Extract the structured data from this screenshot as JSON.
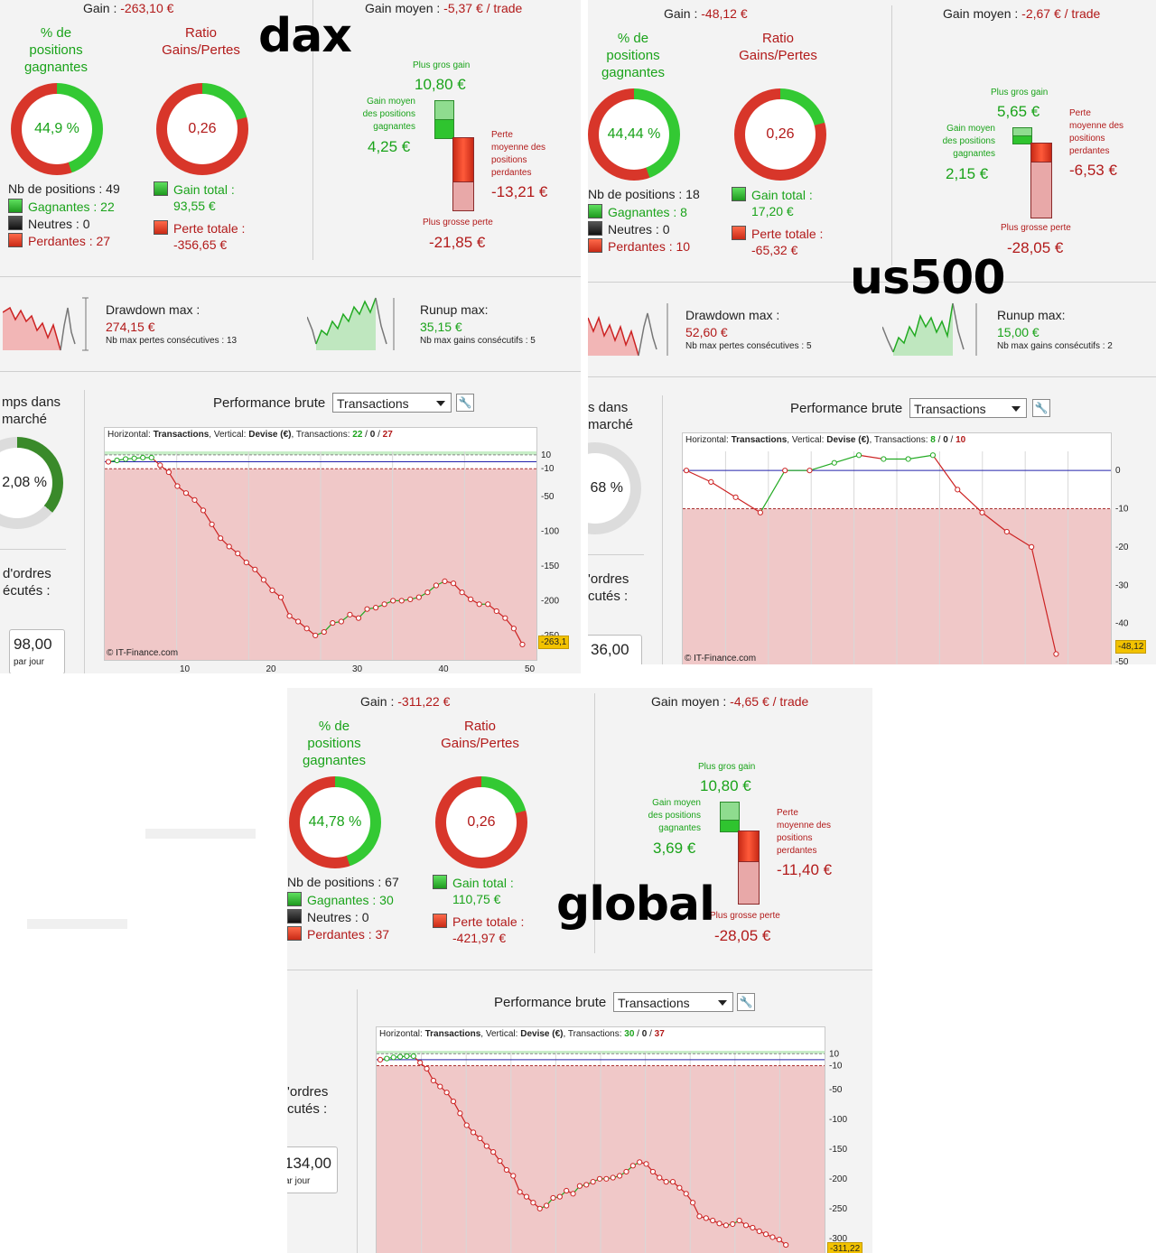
{
  "labels": {
    "dax": "dax",
    "us500": "us500",
    "global": "global"
  },
  "common": {
    "pct_label_1": "% de",
    "pct_label_2": "positions",
    "pct_label_3": "gagnantes",
    "ratio_label_1": "Ratio",
    "ratio_label_2": "Gains/Pertes",
    "gain_total": "Gain total :",
    "perte_totale": "Perte totale :",
    "plus_gros_gain": "Plus gros gain",
    "plus_grosse_perte": "Plus grosse perte",
    "gain_moyen_1": "Gain moyen",
    "gain_moyen_2": "des positions",
    "gain_moyen_3": "gagnantes",
    "perte_moy_1": "Perte",
    "perte_moy_2": "moyenne des",
    "perte_moy_3": "positions",
    "perte_moy_4": "perdantes",
    "drawdown": "Drawdown max :",
    "runup": "Runup max:",
    "runup_dax": "Runup max:",
    "nb_max_pertes": "Nb max pertes consécutives :",
    "nb_max_gains": "Nb max gains consécutifs :",
    "perf_brute": "Performance brute",
    "select_value": "Transactions",
    "horizontal": "Horizontal:",
    "transactions_b": "Transactions",
    "vertical": ", Vertical:",
    "devise": "Devise (€)",
    "transactions_lbl": ", Transactions:",
    "copyright": "© IT-Finance.com",
    "par_jour": "par jour",
    "temps_dans_1": "mps dans",
    "temps_dans_2": "marché",
    "ordres_1": "d'ordres",
    "ordres_2": "écutés :"
  },
  "dax": {
    "gain": "Gain : ",
    "gain_val": "-263,10 €",
    "gain_moyen": "Gain moyen : ",
    "gain_moyen_val": "-5,37 € / trade",
    "pct": "44,9 %",
    "pct_value": 44.9,
    "ratio": "0,26",
    "nb_positions": "Nb de positions : 49",
    "gagnantes": "Gagnantes : 22",
    "neutres": "Neutres : 0",
    "perdantes": "Perdantes : 27",
    "gain_total_val": "93,55 €",
    "perte_totale_val": "-356,65 €",
    "plus_gros_gain_val": "10,80 €",
    "gain_moyen_pos_val": "4,25 €",
    "perte_moy_val": "-13,21 €",
    "plus_grosse_perte_val": "-21,85 €",
    "drawdown_val": "274,15 €",
    "nb_max_pertes_val": "13",
    "runup_val": "35,15 €",
    "nb_max_gains_val": "5",
    "temps_pct": "2,08 %",
    "ordres_val": "98,00",
    "tx_g": "22",
    "tx_n": "0",
    "tx_p": "27",
    "last_tag": "-263,1"
  },
  "us500": {
    "gain": "Gain : ",
    "gain_val": "-48,12 €",
    "gain_moyen": "Gain moyen : ",
    "gain_moyen_val": "-2,67 € / trade",
    "pct": "44,44 %",
    "pct_value": 44.44,
    "ratio": "0,26",
    "nb_positions": "Nb de positions : 18",
    "gagnantes": "Gagnantes : 8",
    "neutres": "Neutres : 0",
    "perdantes": "Perdantes : 10",
    "gain_total_val": "17,20 €",
    "perte_totale_val": "-65,32 €",
    "plus_gros_gain_val": "5,65 €",
    "gain_moyen_pos_val": "2,15 €",
    "perte_moy_val": "-6,53 €",
    "plus_grosse_perte_val": "-28,05 €",
    "drawdown_val": "52,60 €",
    "nb_max_pertes_val": "5",
    "runup_val": "15,00 €",
    "nb_max_gains_val": "2",
    "temps_pct": "68 %",
    "ordres_val": "36,00",
    "tx_g": "8",
    "tx_n": "0",
    "tx_p": "10",
    "last_tag": "-48,12"
  },
  "global": {
    "gain": "Gain : ",
    "gain_val": "-311,22 €",
    "gain_moyen": "Gain moyen : ",
    "gain_moyen_val": "-4,65 € / trade",
    "pct": "44,78 %",
    "pct_value": 44.78,
    "ratio": "0,26",
    "nb_positions": "Nb de positions : 67",
    "gagnantes": "Gagnantes : 30",
    "neutres": "Neutres : 0",
    "perdantes": "Perdantes : 37",
    "gain_total_val": "110,75 €",
    "perte_totale_val": "-421,97 €",
    "plus_gros_gain_val": "10,80 €",
    "gain_moyen_pos_val": "3,69 €",
    "perte_moy_val": "-11,40 €",
    "plus_grosse_perte_val": "-28,05 €",
    "ordres_val": "134,00",
    "tx_g": "30",
    "tx_n": "0",
    "tx_p": "37",
    "last_tag": "-311,22"
  },
  "chart_data": [
    {
      "type": "line",
      "name": "dax",
      "x_range": [
        1,
        50
      ],
      "ylim": [
        -280,
        15
      ],
      "y_ticks": [
        "10",
        "-10",
        "-50",
        "-100",
        "-150",
        "-200",
        "-250"
      ],
      "x_ticks": [
        "10",
        "20",
        "30",
        "40",
        "50"
      ],
      "values": [
        0,
        2,
        4,
        5,
        6,
        6,
        -5,
        -15,
        -35,
        -45,
        -55,
        -70,
        -90,
        -110,
        -122,
        -132,
        -145,
        -155,
        -170,
        -185,
        -195,
        -222,
        -230,
        -240,
        -250,
        -245,
        -232,
        -230,
        -220,
        -225,
        -212,
        -210,
        -205,
        -200,
        -200,
        -198,
        -195,
        -188,
        -178,
        -172,
        -175,
        -188,
        -198,
        -205,
        -205,
        -215,
        -225,
        -240,
        -263
      ]
    },
    {
      "type": "line",
      "name": "us500",
      "x_range": [
        1,
        18
      ],
      "ylim": [
        -50,
        5
      ],
      "y_ticks": [
        "0",
        "-10",
        "-20",
        "-30",
        "-40",
        "-50"
      ],
      "values": [
        0,
        -3,
        -7,
        -11,
        0,
        0,
        2,
        4,
        3,
        3,
        4,
        -5,
        -11,
        -16,
        -20,
        -48
      ]
    },
    {
      "type": "line",
      "name": "global",
      "x_range": [
        1,
        67
      ],
      "ylim": [
        -320,
        15
      ],
      "y_ticks": [
        "10",
        "-10",
        "-50",
        "-100",
        "-150",
        "-200",
        "-250",
        "-300"
      ],
      "values": [
        0,
        2,
        4,
        5,
        6,
        6,
        -5,
        -15,
        -35,
        -45,
        -55,
        -70,
        -90,
        -110,
        -122,
        -132,
        -145,
        -155,
        -170,
        -185,
        -195,
        -222,
        -230,
        -240,
        -250,
        -245,
        -232,
        -230,
        -220,
        -225,
        -212,
        -210,
        -205,
        -200,
        -200,
        -198,
        -195,
        -188,
        -178,
        -172,
        -175,
        -188,
        -198,
        -205,
        -205,
        -215,
        -225,
        -240,
        -263,
        -266,
        -270,
        -275,
        -278,
        -276,
        -270,
        -278,
        -282,
        -288,
        -293,
        -298,
        -302,
        -311
      ]
    }
  ],
  "colors": {
    "green": "#1aa31a",
    "red": "#b21a1a",
    "donut_green": "#33c933",
    "donut_red": "#d8362a"
  }
}
